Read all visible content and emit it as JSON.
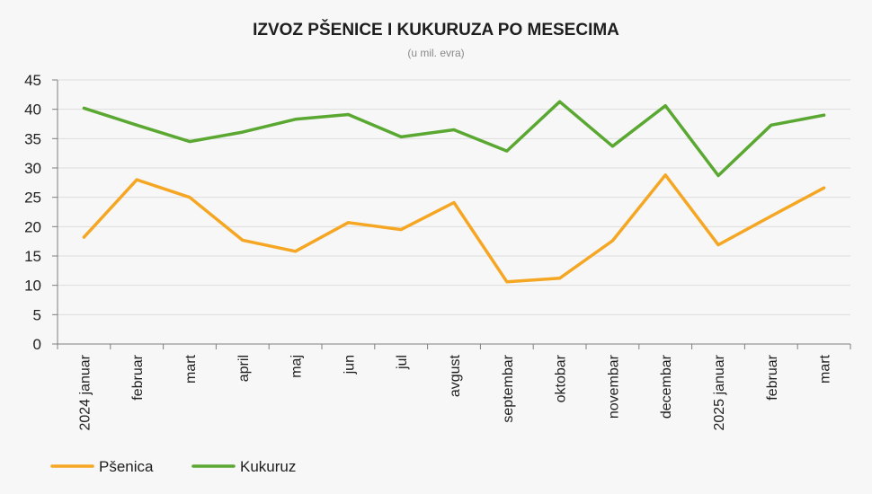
{
  "chart_data": {
    "type": "line",
    "title": "IZVOZ PŠENICE I KUKURUZA PO MESECIMA",
    "subtitle": "(u mil. evra)",
    "xlabel": "",
    "ylabel": "",
    "ylim": [
      0,
      45
    ],
    "yticks": [
      0,
      5,
      10,
      15,
      20,
      25,
      30,
      35,
      40,
      45
    ],
    "grid": true,
    "legend_position": "bottom-left",
    "categories": [
      "2024 januar",
      "februar",
      "mart",
      "april",
      "maj",
      "jun",
      "jul",
      "avgust",
      "septembar",
      "oktobar",
      "novembar",
      "decembar",
      "2025 januar",
      "februar",
      "mart"
    ],
    "series": [
      {
        "name": "Pšenica",
        "color": "#f5a623",
        "values": [
          18.2,
          28.0,
          25.0,
          17.7,
          15.8,
          20.7,
          19.5,
          24.1,
          10.6,
          11.2,
          17.6,
          28.8,
          16.9,
          21.8,
          26.6
        ]
      },
      {
        "name": "Kukuruz",
        "color": "#5aa832",
        "values": [
          40.2,
          37.3,
          34.5,
          36.1,
          38.3,
          39.1,
          35.3,
          36.5,
          32.9,
          41.3,
          33.7,
          40.6,
          28.7,
          37.3,
          39.0
        ]
      }
    ]
  }
}
